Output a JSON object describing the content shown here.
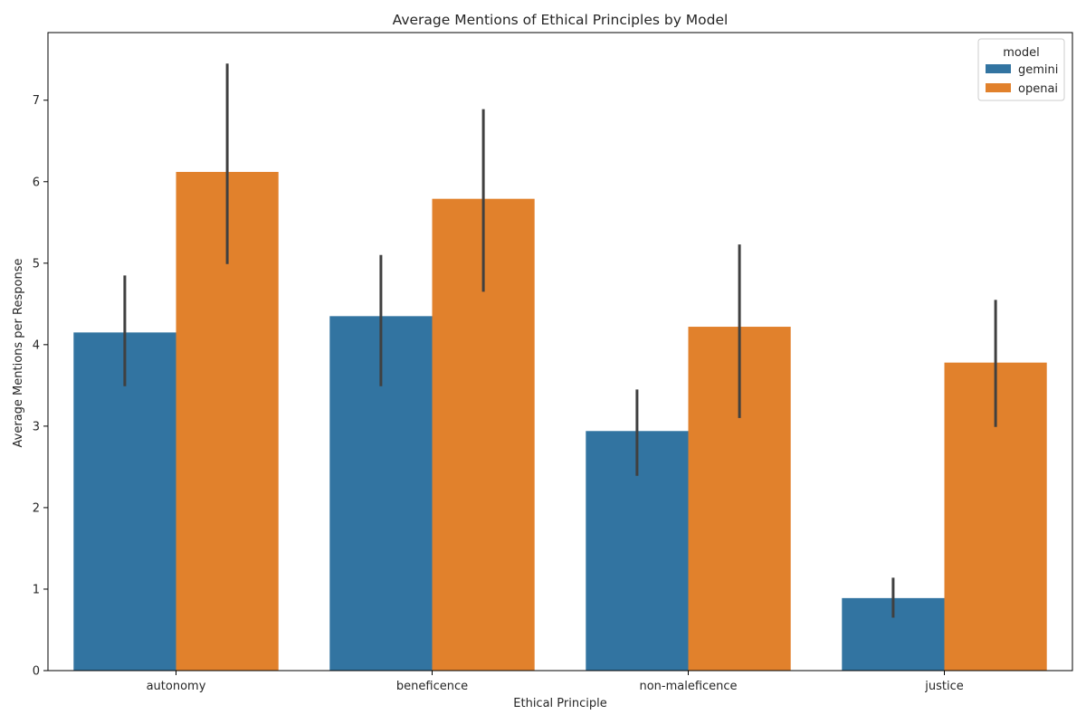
{
  "chart_data": {
    "type": "bar",
    "title": "Average Mentions of Ethical Principles by Model",
    "xlabel": "Ethical Principle",
    "ylabel": "Average Mentions per Response",
    "categories": [
      "autonomy",
      "beneficence",
      "non-maleficence",
      "justice"
    ],
    "ylim": [
      0,
      7.83
    ],
    "yticks": [
      0,
      1,
      2,
      3,
      4,
      5,
      6,
      7
    ],
    "grid": false,
    "legend": {
      "title": "model",
      "placement": "top-right"
    },
    "series": [
      {
        "name": "gemini",
        "color": "#3274a1",
        "values": [
          4.15,
          4.35,
          2.94,
          0.89
        ],
        "ci_low": [
          3.49,
          3.49,
          2.39,
          0.65
        ],
        "ci_high": [
          4.85,
          5.1,
          3.45,
          1.14
        ]
      },
      {
        "name": "openai",
        "color": "#e1812c",
        "values": [
          6.12,
          5.79,
          4.22,
          3.78
        ],
        "ci_low": [
          4.99,
          4.65,
          3.1,
          2.99
        ],
        "ci_high": [
          7.45,
          6.89,
          5.23,
          4.55
        ]
      }
    ]
  }
}
